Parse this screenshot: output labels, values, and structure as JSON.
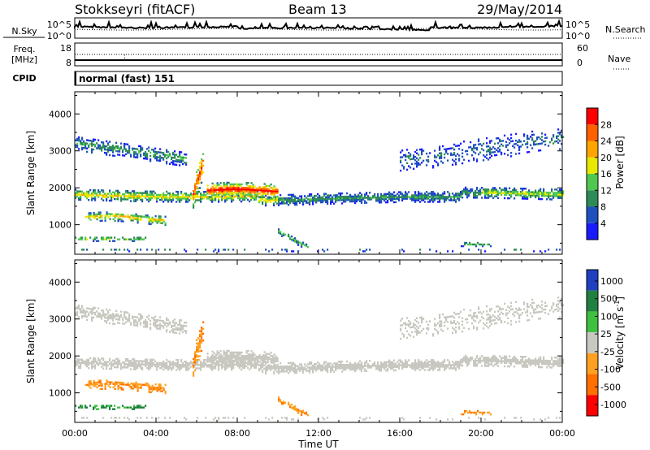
{
  "header": {
    "station": "Stokkseyri (fitACF)",
    "beam": "Beam 13",
    "date": "29/May/2014"
  },
  "noise_panel": {
    "left_label": "N.Sky",
    "right_label": "N.Search",
    "left_ticks": [
      "10^5",
      "10^0"
    ],
    "right_ticks": [
      "10^5",
      "10^0"
    ]
  },
  "freq_panel": {
    "label_line1": "Freq.",
    "label_line2": "[MHz]",
    "left_ticks": [
      "18",
      "8"
    ],
    "right_label": "Nave",
    "right_ticks": [
      "60",
      "0"
    ]
  },
  "cpid": {
    "label": "CPID",
    "value": "normal (fast) 151"
  },
  "colors": {
    "power_scale": [
      "#1a1aff",
      "#2050c0",
      "#2e8b57",
      "#50c850",
      "#e8e800",
      "#ffa500",
      "#ff6000",
      "#ff0000"
    ],
    "velocity_scale": [
      "#2040c0",
      "#208040",
      "#40c040",
      "#c8c8c0",
      "#ffa020",
      "#ff7000",
      "#ff0000"
    ],
    "ground_scatter": "#c8c8c0"
  },
  "chart_data": [
    {
      "type": "heatmap",
      "name": "power",
      "ylabel": "Slant Range [km]",
      "yticks": [
        "1000",
        "2000",
        "3000",
        "4000"
      ],
      "ylim": [
        200,
        4600
      ],
      "colorbar_label": "Power [dB]",
      "colorbar_ticks": [
        "4",
        "8",
        "12",
        "16",
        "20",
        "24",
        "28"
      ],
      "colorbar_range": [
        0,
        32
      ]
    },
    {
      "type": "heatmap",
      "name": "velocity",
      "ylabel": "Slant Range [km]",
      "yticks": [
        "1000",
        "2000",
        "3000",
        "4000"
      ],
      "ylim": [
        200,
        4600
      ],
      "colorbar_label": "Velocity [m s-1]",
      "colorbar_ticks": [
        "1000",
        "500",
        "100",
        "25",
        "-25",
        "-100",
        "-500",
        "-1000"
      ],
      "xlabel": "Time UT",
      "xticks": [
        "00:00",
        "04:00",
        "08:00",
        "12:00",
        "16:00",
        "20:00",
        "00:00"
      ],
      "xlim_hours": [
        0,
        24
      ]
    }
  ]
}
